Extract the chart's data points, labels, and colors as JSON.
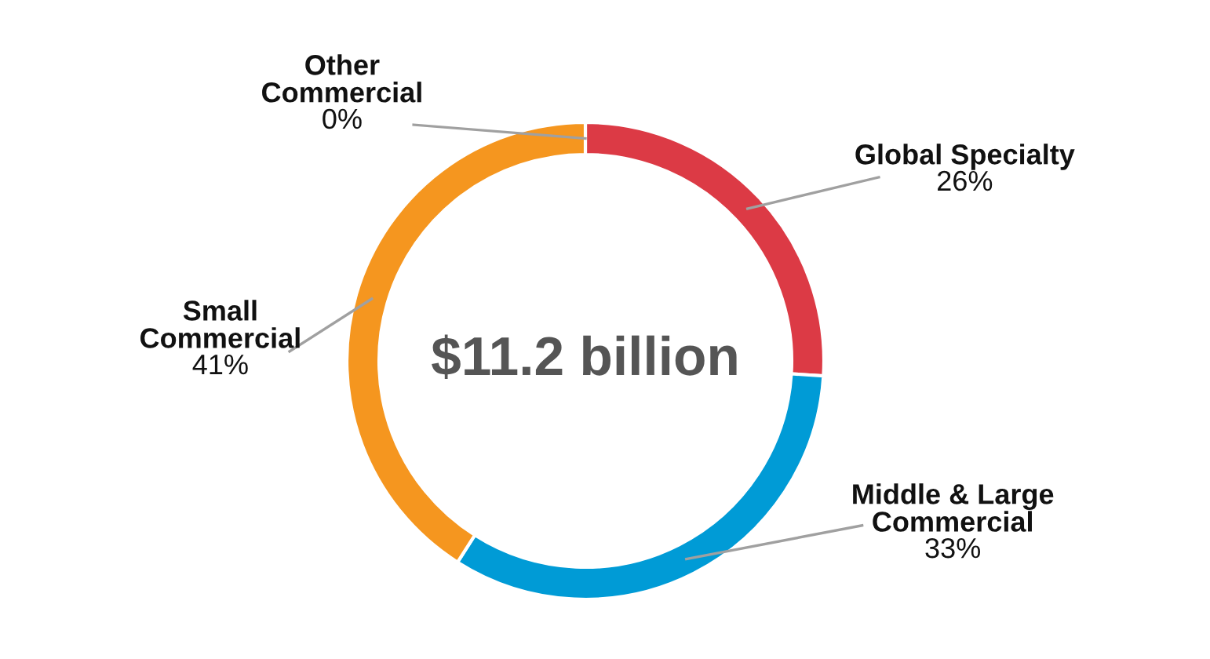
{
  "chart_data": {
    "type": "donut",
    "categories": [
      "Other\nCommercial",
      "Global Specialty",
      "Middle & Large\nCommercial",
      "Small\nCommercial"
    ],
    "values": [
      0,
      26,
      33,
      41
    ],
    "value_labels": [
      "0%",
      "26%",
      "33%",
      "41%"
    ],
    "colors": [
      "#1f5c8f",
      "#dc3a45",
      "#009bd6",
      "#f5961f"
    ],
    "annotations": [
      "$11.2 billion"
    ],
    "legend": false
  }
}
